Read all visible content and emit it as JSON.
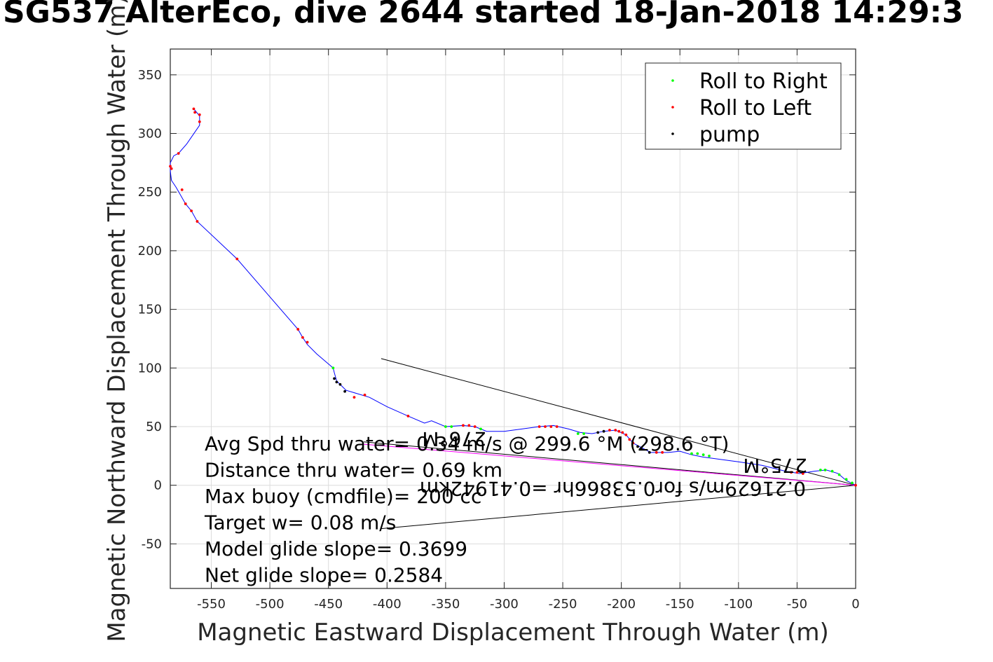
{
  "title": "SG537 AlterEco, dive 2644 started 18-Jan-2018 14:29:3",
  "chart_data": {
    "type": "line",
    "xlabel": "Magnetic Eastward Displacement Through Water (m)",
    "ylabel": "Magnetic Northward Displacement Through Water (m)",
    "xlim": [
      -585,
      0
    ],
    "ylim": [
      -88,
      372
    ],
    "xticks": [
      "-550",
      "-500",
      "-450",
      "-400",
      "-350",
      "-300",
      "-250",
      "-200",
      "-150",
      "-100",
      "-50",
      "0"
    ],
    "xtick_values": [
      -550,
      -500,
      -450,
      -400,
      -350,
      -300,
      -250,
      -200,
      -150,
      -100,
      -50,
      0
    ],
    "yticks": [
      "-50",
      "0",
      "50",
      "100",
      "150",
      "200",
      "250",
      "300",
      "350"
    ],
    "ytick_values": [
      -50,
      0,
      50,
      100,
      150,
      200,
      250,
      300,
      350
    ],
    "grid": true,
    "legend_position": "top-right",
    "legend": [
      {
        "label": "Roll to Right",
        "color": "#00ff00"
      },
      {
        "label": "Roll to Left",
        "color": "#ff0000"
      },
      {
        "label": "pump",
        "color": "#000000"
      }
    ],
    "track": {
      "name": "track",
      "color": "#0000ff",
      "points": [
        [
          0,
          0
        ],
        [
          -8,
          4
        ],
        [
          -15,
          10
        ],
        [
          -25,
          13
        ],
        [
          -35,
          12
        ],
        [
          -48,
          10
        ],
        [
          -60,
          12
        ],
        [
          -80,
          17
        ],
        [
          -100,
          20
        ],
        [
          -115,
          22
        ],
        [
          -130,
          24
        ],
        [
          -140,
          26
        ],
        [
          -150,
          29
        ],
        [
          -160,
          28
        ],
        [
          -175,
          28
        ],
        [
          -190,
          36
        ],
        [
          -196,
          43
        ],
        [
          -205,
          47
        ],
        [
          -215,
          46
        ],
        [
          -225,
          44
        ],
        [
          -235,
          45
        ],
        [
          -245,
          48
        ],
        [
          -258,
          51
        ],
        [
          -270,
          50
        ],
        [
          -285,
          48
        ],
        [
          -300,
          46
        ],
        [
          -315,
          46
        ],
        [
          -325,
          50
        ],
        [
          -335,
          51
        ],
        [
          -350,
          50
        ],
        [
          -362,
          55
        ],
        [
          -368,
          53
        ],
        [
          -382,
          59
        ],
        [
          -400,
          67
        ],
        [
          -415,
          75
        ],
        [
          -425,
          78
        ],
        [
          -435,
          81
        ],
        [
          -440,
          86
        ],
        [
          -443,
          89
        ],
        [
          -445,
          96
        ],
        [
          -446,
          100
        ],
        [
          -460,
          112
        ],
        [
          -468,
          120
        ],
        [
          -472,
          126
        ],
        [
          -476,
          133
        ],
        [
          -528,
          193
        ],
        [
          -562,
          225
        ],
        [
          -567,
          234
        ],
        [
          -572,
          240
        ],
        [
          -580,
          254
        ],
        [
          -584,
          260
        ],
        [
          -585,
          268
        ],
        [
          -585,
          275
        ],
        [
          -582,
          281
        ],
        [
          -578,
          283
        ],
        [
          -571,
          291
        ],
        [
          -560,
          307
        ],
        [
          -560,
          315
        ],
        [
          -565,
          321
        ]
      ]
    },
    "roll_right_points": [
      [
        -3,
        2
      ],
      [
        -8,
        5
      ],
      [
        -14,
        9
      ],
      [
        -20,
        12
      ],
      [
        -26,
        13
      ],
      [
        -30,
        13
      ],
      [
        -125,
        25
      ],
      [
        -130,
        26
      ],
      [
        -135,
        27
      ],
      [
        -140,
        27
      ],
      [
        -232,
        44
      ],
      [
        -237,
        44
      ],
      [
        -320,
        48
      ],
      [
        -345,
        50
      ],
      [
        -350,
        50
      ],
      [
        -446,
        100
      ]
    ],
    "roll_left_points": [
      [
        0,
        0
      ],
      [
        -45,
        10
      ],
      [
        -50,
        11
      ],
      [
        -55,
        11
      ],
      [
        -165,
        28
      ],
      [
        -170,
        28
      ],
      [
        -190,
        36
      ],
      [
        -193,
        39
      ],
      [
        -196,
        43
      ],
      [
        -199,
        45
      ],
      [
        -202,
        46
      ],
      [
        -205,
        47
      ],
      [
        -210,
        47
      ],
      [
        -255,
        50
      ],
      [
        -260,
        50
      ],
      [
        -265,
        50
      ],
      [
        -270,
        50
      ],
      [
        -325,
        50
      ],
      [
        -330,
        51
      ],
      [
        -335,
        51
      ],
      [
        -382,
        59
      ],
      [
        -419,
        77
      ],
      [
        -428,
        75
      ],
      [
        -468,
        122
      ],
      [
        -472,
        126
      ],
      [
        -476,
        133
      ],
      [
        -528,
        193
      ],
      [
        -562,
        225
      ],
      [
        -567,
        234
      ],
      [
        -572,
        240
      ],
      [
        -575,
        252
      ],
      [
        -585,
        272
      ],
      [
        -584,
        270
      ],
      [
        -578,
        283
      ],
      [
        -560,
        310
      ],
      [
        -560,
        316
      ],
      [
        -564,
        318
      ],
      [
        -565,
        321
      ]
    ],
    "pump_points": [
      [
        -176,
        28
      ],
      [
        -183,
        31
      ],
      [
        -186,
        33
      ],
      [
        -215,
        46
      ],
      [
        -220,
        45
      ],
      [
        -436,
        80
      ],
      [
        -440,
        86
      ],
      [
        -443,
        88
      ],
      [
        -445,
        91
      ]
    ],
    "extra_lines": [
      {
        "color": "#000000",
        "points": [
          [
            -405,
            108
          ],
          [
            0,
            0
          ]
        ]
      },
      {
        "color": "#000000",
        "points": [
          [
            -405,
            -37
          ],
          [
            0,
            0
          ]
        ]
      },
      {
        "color": "#000000",
        "points": [
          [
            -420,
            37
          ],
          [
            0,
            0
          ]
        ]
      },
      {
        "color": "#ff00ff",
        "points": [
          [
            -420,
            35
          ],
          [
            0,
            0
          ]
        ]
      }
    ],
    "annotations": [
      "Avg Spd thru water=  0.34 m/s @ 299.6 °M (298.6 °T)",
      "Distance thru water=  0.69 km",
      "Max buoy (cmdfile)= 200 cc",
      "Target w= 0.08 m/s",
      "Model glide slope= 0.3699",
      "Net glide slope= 0.2584"
    ],
    "flipped_annotations": [
      "0.21629m/s for0.53866hr =0.41942km",
      "275°M",
      "276°M"
    ]
  }
}
